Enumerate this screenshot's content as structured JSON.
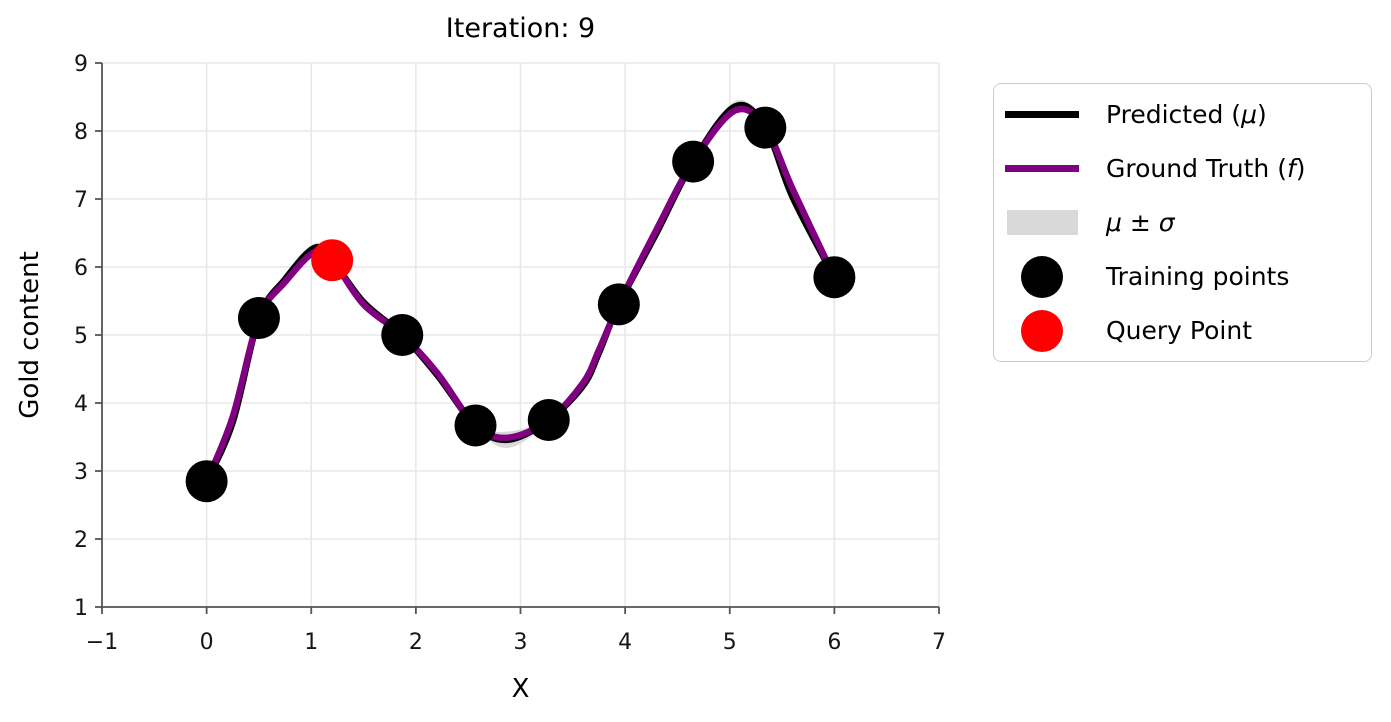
{
  "colors": {
    "predicted": "#000000",
    "ground_truth": "#800080",
    "band": "#d9d9d9",
    "training": "#000000",
    "query": "#ff0000",
    "grid": "#e8e8e8",
    "spine": "#555555",
    "tick_label": "#151515",
    "legend_border": "#cccccc"
  },
  "legend": {
    "items": [
      {
        "pre": "Predicted (",
        "sym": "μ",
        "post": ")"
      },
      {
        "pre": "Ground Truth (",
        "sym": "f",
        "post": ")"
      },
      {
        "pre": "",
        "sym": "μ ± σ",
        "post": ""
      },
      {
        "pre": "Training points",
        "sym": "",
        "post": ""
      },
      {
        "pre": "Query Point",
        "sym": "",
        "post": ""
      }
    ]
  },
  "chart_data": {
    "type": "line",
    "title": "Iteration: 9",
    "xlabel": "X",
    "ylabel": "Gold content",
    "xlim": [
      -1,
      7
    ],
    "ylim": [
      1,
      9
    ],
    "xticks": [
      -1,
      0,
      1,
      2,
      3,
      4,
      5,
      6,
      7
    ],
    "xtick_labels": [
      "−1",
      "0",
      "1",
      "2",
      "3",
      "4",
      "5",
      "6",
      "7"
    ],
    "yticks": [
      1,
      2,
      3,
      4,
      5,
      6,
      7,
      8,
      9
    ],
    "ytick_labels": [
      "1",
      "2",
      "3",
      "4",
      "5",
      "6",
      "7",
      "8",
      "9"
    ],
    "grid": true,
    "legend_position": "outside-right",
    "x": [
      0,
      0.25,
      0.5,
      0.75,
      1.03,
      1.2,
      1.5,
      1.87,
      2.2,
      2.57,
      2.88,
      3.27,
      3.6,
      3.75,
      3.94,
      4.3,
      4.65,
      5.05,
      5.34,
      5.6,
      6.0
    ],
    "series": [
      {
        "name": "Predicted (μ)",
        "color": "#000000",
        "values": [
          2.85,
          3.72,
          5.25,
          5.82,
          6.28,
          6.1,
          5.48,
          5.0,
          4.42,
          3.67,
          3.46,
          3.75,
          4.26,
          4.74,
          5.45,
          6.5,
          7.55,
          8.36,
          8.05,
          7.03,
          5.85
        ]
      },
      {
        "name": "Ground Truth (f)",
        "color": "#800080",
        "values": [
          2.85,
          3.8,
          5.25,
          5.78,
          6.22,
          6.1,
          5.45,
          5.0,
          4.45,
          3.67,
          3.49,
          3.75,
          4.3,
          4.78,
          5.45,
          6.55,
          7.55,
          8.3,
          8.05,
          7.15,
          5.85
        ]
      }
    ],
    "band": {
      "name": "μ ± σ",
      "color": "#d9d9d9",
      "sigma": [
        0.05,
        0.09,
        0.04,
        0.08,
        0.07,
        0.04,
        0.08,
        0.04,
        0.08,
        0.04,
        0.12,
        0.04,
        0.09,
        0.09,
        0.04,
        0.09,
        0.05,
        0.08,
        0.04,
        0.09,
        0.06
      ]
    },
    "training_points": {
      "name": "Training points",
      "color": "#000000",
      "points": [
        [
          0,
          2.85
        ],
        [
          0.5,
          5.25
        ],
        [
          1.87,
          5.0
        ],
        [
          2.57,
          3.67
        ],
        [
          3.27,
          3.75
        ],
        [
          3.94,
          5.45
        ],
        [
          4.65,
          7.55
        ],
        [
          5.34,
          8.05
        ],
        [
          6.0,
          5.85
        ]
      ]
    },
    "query_point": {
      "name": "Query Point",
      "color": "#ff0000",
      "point": [
        1.2,
        6.1
      ]
    }
  }
}
